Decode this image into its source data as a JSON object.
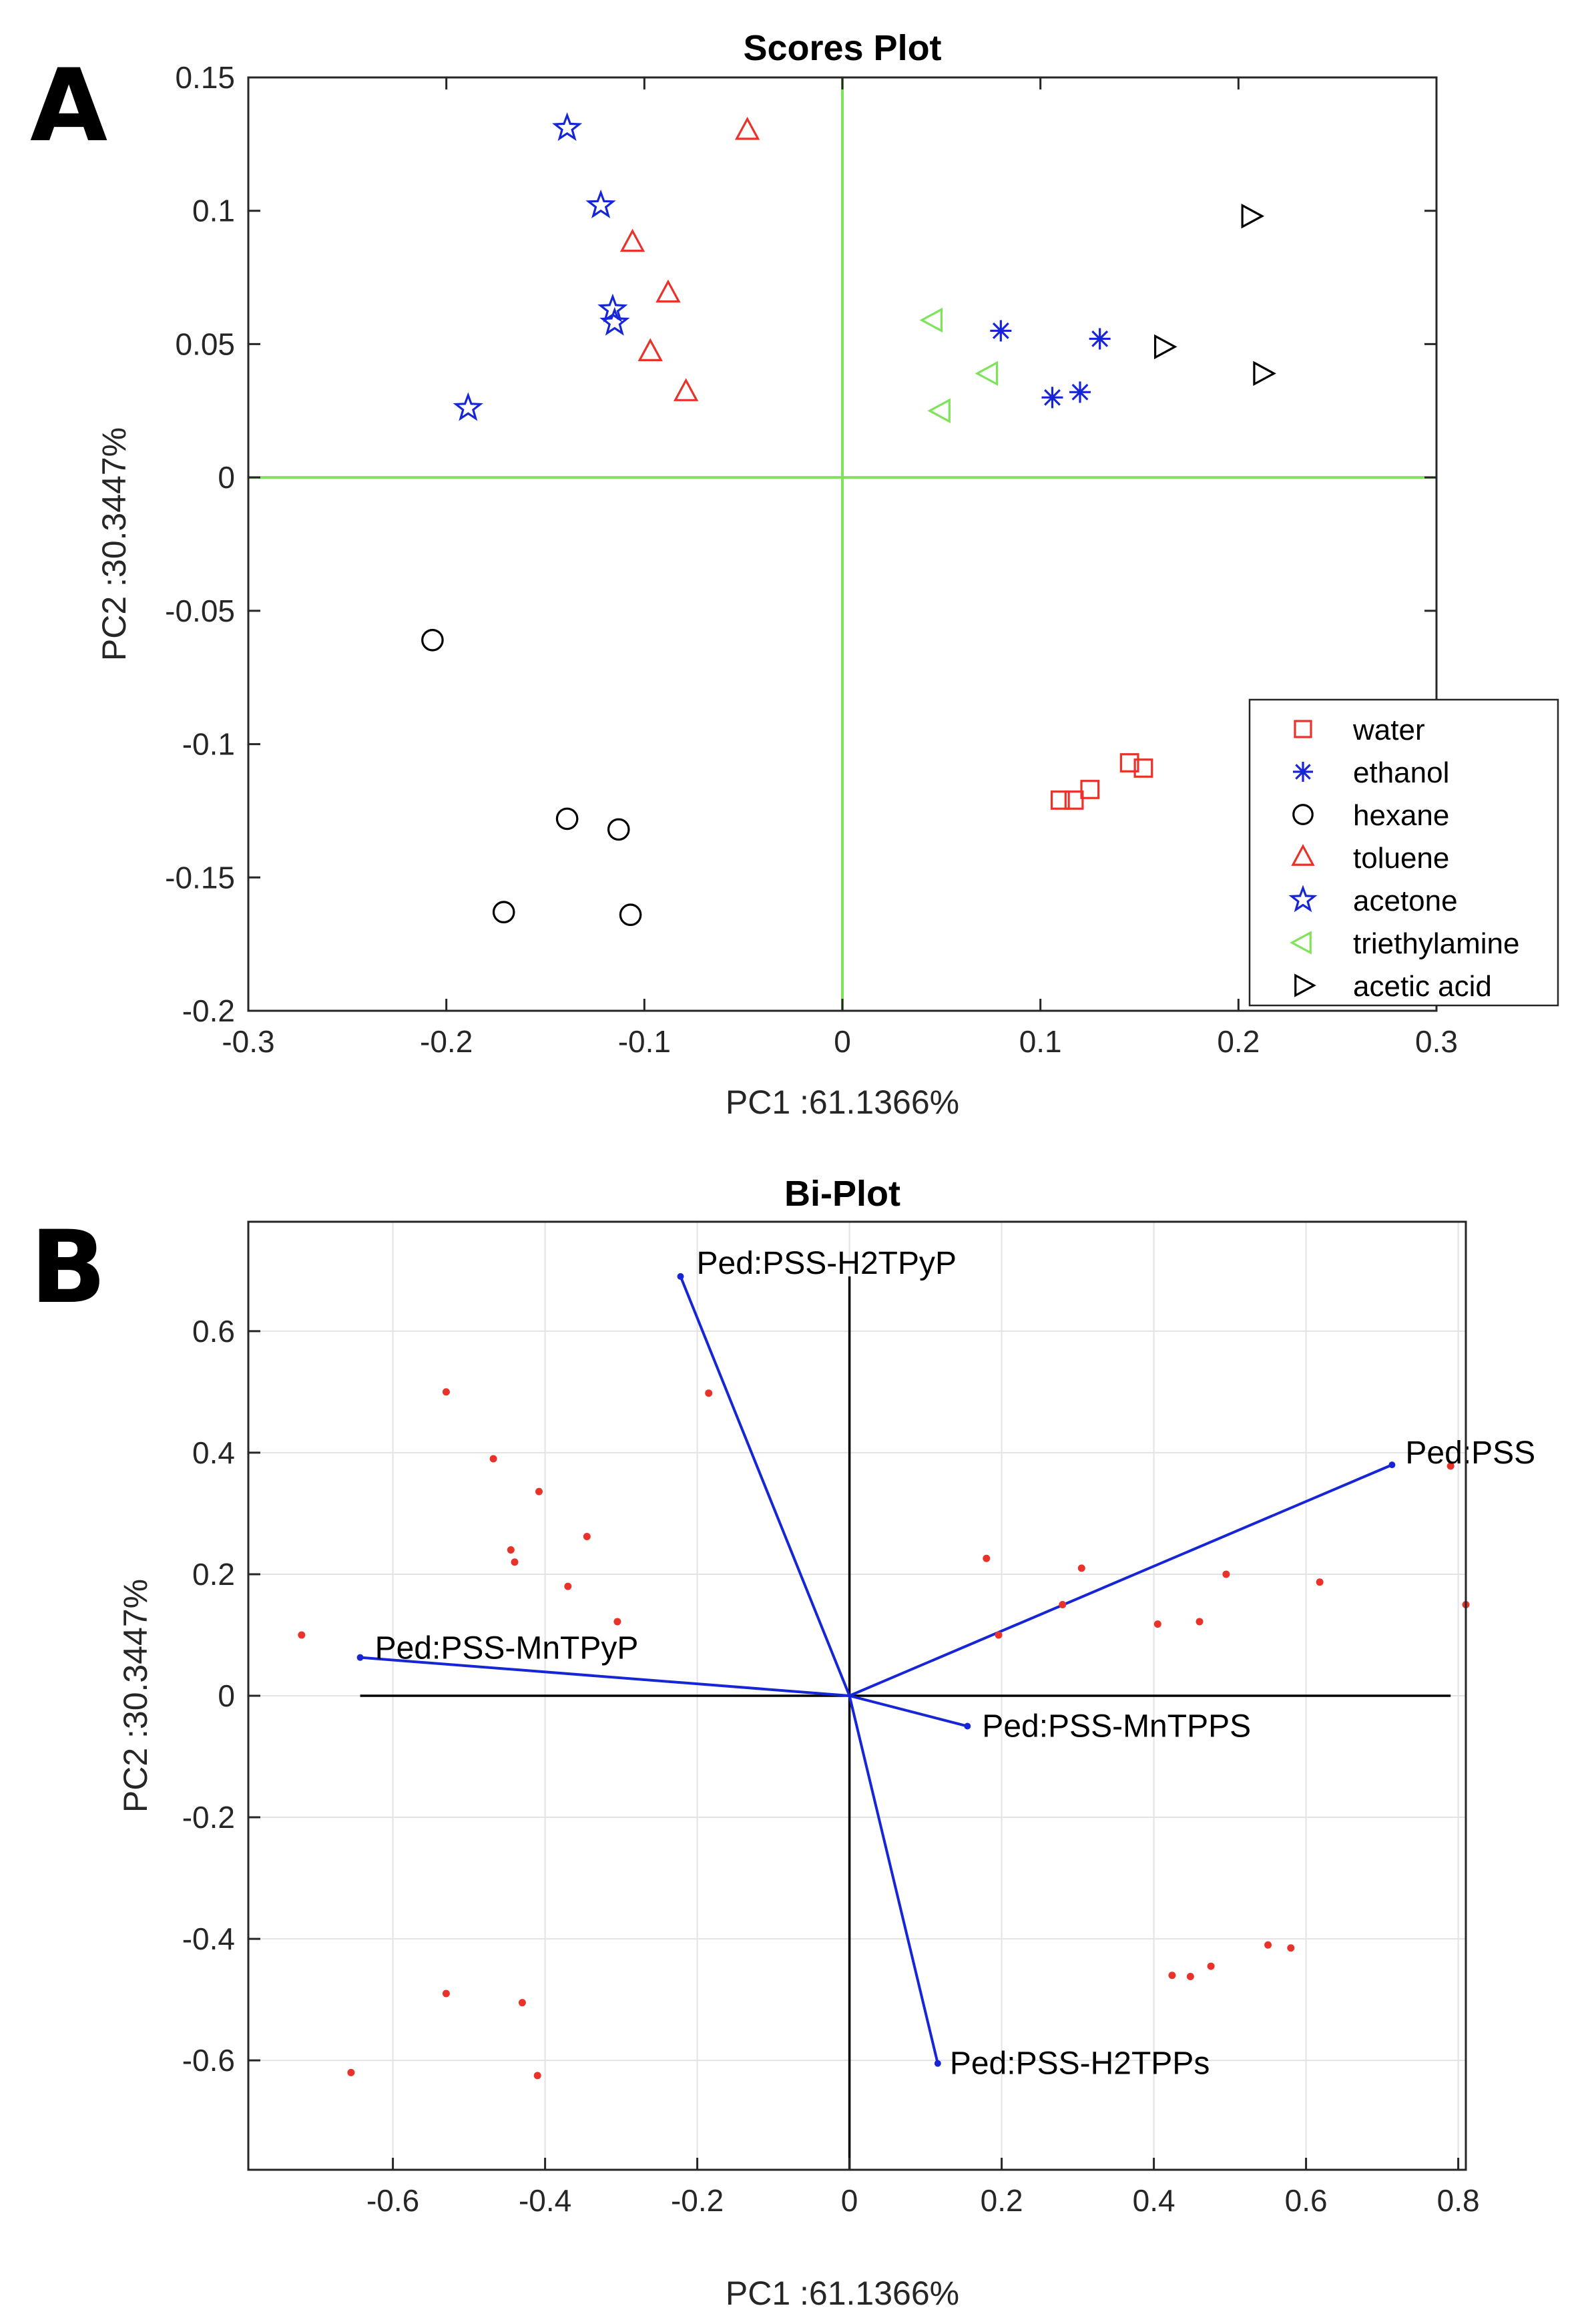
{
  "panel_labels": {
    "a": "A",
    "b": "B"
  },
  "chart_data": [
    {
      "type": "scatter",
      "title": "Scores Plot",
      "xlabel": "PC1 :61.1366%",
      "ylabel": "PC2 :30.3447%",
      "xlim": [
        -0.3,
        0.3
      ],
      "ylim": [
        -0.2,
        0.15
      ],
      "xticks": [
        -0.3,
        -0.2,
        -0.1,
        0,
        0.1,
        0.2,
        0.3
      ],
      "yticks": [
        -0.2,
        -0.15,
        -0.1,
        -0.05,
        0,
        0.05,
        0.1,
        0.15
      ],
      "xtick_labels": [
        "-0.3",
        "-0.2",
        "-0.1",
        "0",
        "0.1",
        "0.2",
        "0.3"
      ],
      "ytick_labels": [
        "-0.2",
        "-0.15",
        "-0.1",
        "-0.05",
        "0",
        "0.05",
        "0.1",
        "0.15"
      ],
      "grid": false,
      "crosshair_color": "#7fe35a",
      "legend_position": "lower-right",
      "series": [
        {
          "name": "water",
          "marker": "square",
          "color": "#e8322a",
          "x": [
            0.11,
            0.117,
            0.125,
            0.145,
            0.152
          ],
          "y": [
            -0.121,
            -0.121,
            -0.117,
            -0.107,
            -0.109
          ]
        },
        {
          "name": "ethanol",
          "marker": "asterisk",
          "color": "#1626d6",
          "x": [
            0.08,
            0.106,
            0.12,
            0.13
          ],
          "y": [
            0.055,
            0.03,
            0.032,
            0.052
          ]
        },
        {
          "name": "hexane",
          "marker": "circle",
          "color": "#000000",
          "x": [
            -0.207,
            -0.139,
            -0.113,
            -0.171,
            -0.107
          ],
          "y": [
            -0.061,
            -0.128,
            -0.132,
            -0.163,
            -0.164
          ]
        },
        {
          "name": "toluene",
          "marker": "triangle-up",
          "color": "#e8322a",
          "x": [
            -0.048,
            -0.106,
            -0.088,
            -0.097,
            -0.079
          ],
          "y": [
            0.13,
            0.088,
            0.069,
            0.047,
            0.032
          ]
        },
        {
          "name": "acetone",
          "marker": "star",
          "color": "#1626d6",
          "x": [
            -0.139,
            -0.122,
            -0.116,
            -0.115,
            -0.189
          ],
          "y": [
            0.131,
            0.102,
            0.063,
            0.058,
            0.026
          ]
        },
        {
          "name": "triethylamine",
          "marker": "triangle-left",
          "color": "#7fe35a",
          "x": [
            0.046,
            0.074,
            0.05
          ],
          "y": [
            0.059,
            0.039,
            0.025
          ]
        },
        {
          "name": "acetic acid",
          "marker": "triangle-right",
          "color": "#000000",
          "x": [
            0.206,
            0.162,
            0.212
          ],
          "y": [
            0.098,
            0.049,
            0.039
          ]
        }
      ]
    },
    {
      "type": "biplot",
      "title": "Bi-Plot",
      "xlabel": "PC1 :61.1366%",
      "ylabel": "PC2 :30.3447%",
      "xlim": [
        -0.79,
        0.81
      ],
      "ylim": [
        -0.78,
        0.78
      ],
      "xticks": [
        -0.6,
        -0.4,
        -0.2,
        0,
        0.2,
        0.4,
        0.6,
        0.8
      ],
      "yticks": [
        -0.6,
        -0.4,
        -0.2,
        0,
        0.2,
        0.4,
        0.6
      ],
      "xtick_labels": [
        "-0.6",
        "-0.4",
        "-0.2",
        "0",
        "0.2",
        "0.4",
        "0.6",
        "0.8"
      ],
      "ytick_labels": [
        "-0.6",
        "-0.4",
        "-0.2",
        "0",
        "0.2",
        "0.4",
        "0.6"
      ],
      "grid": true,
      "vector_color": "#1626d6",
      "point_color": "#e8322a",
      "vectors": [
        {
          "name": "Ped:PSS-H2TPyP",
          "x": -0.222,
          "y": 0.69
        },
        {
          "name": "Ped:PSS",
          "x": 0.713,
          "y": 0.38
        },
        {
          "name": "Ped:PSS-MnTPyP",
          "x": -0.643,
          "y": 0.063
        },
        {
          "name": "Ped:PSS-MnTPPS",
          "x": 0.155,
          "y": -0.05
        },
        {
          "name": "Ped:PSS-H2TPPs",
          "x": 0.116,
          "y": -0.605
        }
      ],
      "points": {
        "x": [
          -0.53,
          -0.468,
          -0.408,
          -0.345,
          -0.445,
          -0.44,
          -0.37,
          -0.305,
          -0.72,
          -0.185,
          0.18,
          0.196,
          0.28,
          0.305,
          0.405,
          0.46,
          0.495,
          0.618,
          0.79,
          0.81,
          -0.53,
          -0.43,
          -0.41,
          -0.655,
          0.424,
          0.448,
          0.475,
          0.55,
          0.58
        ],
        "y": [
          0.5,
          0.39,
          0.336,
          0.262,
          0.24,
          0.22,
          0.18,
          0.122,
          0.1,
          0.498,
          0.226,
          0.1,
          0.15,
          0.21,
          0.118,
          0.122,
          0.2,
          0.187,
          0.378,
          0.15,
          -0.49,
          -0.505,
          -0.625,
          -0.62,
          -0.46,
          -0.462,
          -0.445,
          -0.41,
          -0.415
        ]
      }
    }
  ]
}
